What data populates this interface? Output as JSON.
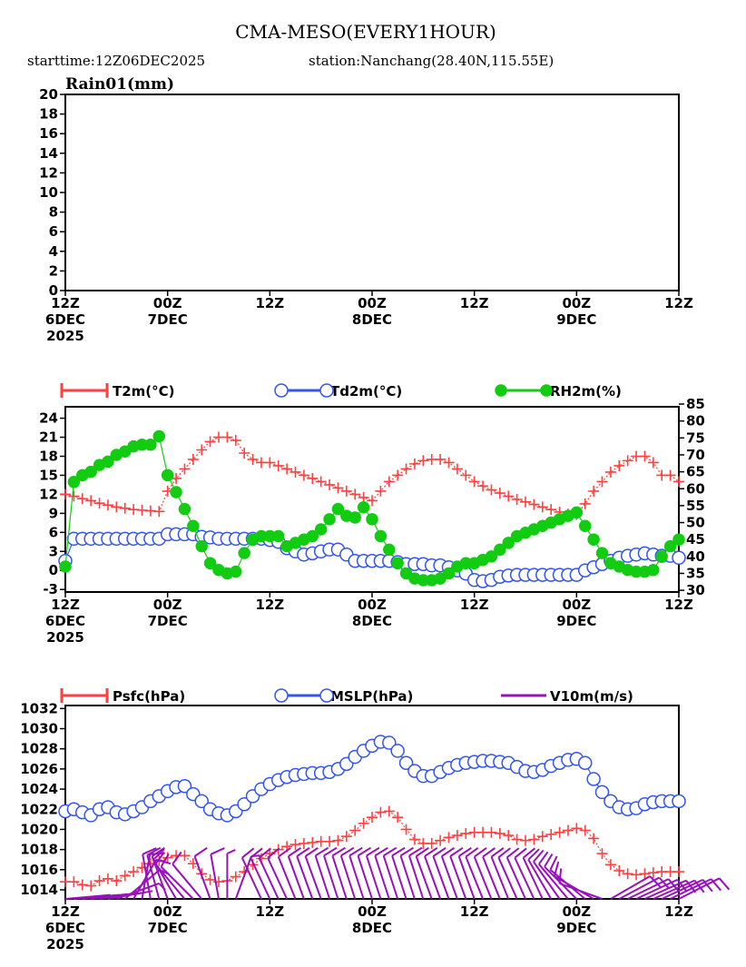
{
  "title": "CMA-MESO(EVERY1HOUR)",
  "subtitle_start": "starttime:12Z06DEC2025",
  "subtitle_station": "station:Nanchang(28.40N,115.55E)",
  "colors": {
    "t2m": "#ff4040",
    "td2m": "#3355ee",
    "rh2m": "#11cc11",
    "psfc": "#ff4040",
    "mslp": "#3355ee",
    "v10m": "#9911bb"
  },
  "time_ticks": [
    {
      "hour": 0,
      "l1": "12Z",
      "l2": "6DEC",
      "l3": "2025"
    },
    {
      "hour": 12,
      "l1": "00Z",
      "l2": "7DEC",
      "l3": ""
    },
    {
      "hour": 24,
      "l1": "12Z",
      "l2": "",
      "l3": ""
    },
    {
      "hour": 36,
      "l1": "00Z",
      "l2": "8DEC",
      "l3": ""
    },
    {
      "hour": 48,
      "l1": "12Z",
      "l2": "",
      "l3": ""
    },
    {
      "hour": 60,
      "l1": "00Z",
      "l2": "9DEC",
      "l3": ""
    },
    {
      "hour": 72,
      "l1": "12Z",
      "l2": "",
      "l3": ""
    }
  ],
  "chart_data": [
    {
      "type": "bar",
      "title": "Rain01(mm)",
      "ylim": [
        0,
        20
      ],
      "yticks": [
        "0",
        "2",
        "4",
        "6",
        "8",
        "10",
        "12",
        "14",
        "16",
        "18",
        "20"
      ],
      "xlim_hours": [
        0,
        72
      ],
      "values": []
    },
    {
      "type": "line",
      "ylim_left": [
        -3.4,
        25.8
      ],
      "ylim_right": [
        29.5,
        84.2
      ],
      "yticks_left": [
        "-3",
        "0",
        "3",
        "6",
        "9",
        "12",
        "15",
        "18",
        "21",
        "24"
      ],
      "yticks_right": [
        "30",
        "35",
        "40",
        "45",
        "50",
        "55",
        "60",
        "65",
        "70",
        "75",
        "80",
        "85"
      ],
      "legend": [
        "T2m(°C)",
        "Td2m(°C)",
        "RH2m(%)"
      ],
      "series": [
        {
          "name": "T2m",
          "axis": "left",
          "values": [
            12,
            11.7,
            11.3,
            11,
            10.6,
            10.3,
            10,
            9.8,
            9.6,
            9.5,
            9.4,
            9.3,
            12.5,
            14.5,
            16,
            17.5,
            19,
            20.3,
            21,
            21,
            20.5,
            18.5,
            17.5,
            17,
            17,
            16.5,
            16,
            15.5,
            15,
            14.5,
            14,
            13.5,
            13,
            12.5,
            12,
            11.5,
            11,
            12.5,
            14,
            15,
            16,
            16.8,
            17.3,
            17.5,
            17.5,
            17,
            16,
            15,
            14,
            13.3,
            12.7,
            12.2,
            11.7,
            11.2,
            10.8,
            10.4,
            10,
            9.6,
            9.2,
            8.9,
            8.8,
            10.5,
            12.5,
            14,
            15.5,
            16.5,
            17.3,
            18,
            18,
            17,
            15,
            15,
            14
          ]
        },
        {
          "name": "Td2m",
          "axis": "left",
          "values": [
            1.5,
            5,
            5,
            5,
            5,
            5,
            5,
            5,
            5,
            5,
            5,
            5,
            5.7,
            5.7,
            5.7,
            5.7,
            5.3,
            5.2,
            5,
            5,
            5,
            5,
            5,
            5,
            4.8,
            4.5,
            3.5,
            3,
            2.5,
            2.7,
            3,
            3.3,
            3.3,
            2.5,
            1.5,
            1.5,
            1.5,
            1.5,
            1.5,
            1.3,
            1,
            1,
            1,
            0.8,
            0.8,
            0.5,
            0,
            -0.5,
            -1.5,
            -1.7,
            -1.5,
            -1,
            -0.8,
            -0.7,
            -0.7,
            -0.7,
            -0.7,
            -0.7,
            -0.7,
            -0.7,
            -0.7,
            0,
            0.5,
            1,
            1.5,
            2,
            2.3,
            2.5,
            2.7,
            2.5,
            2.3,
            2.3,
            2
          ]
        },
        {
          "name": "RH2m",
          "axis": "right",
          "values": [
            37,
            62,
            64,
            65,
            67,
            68,
            70,
            71,
            72.5,
            73,
            73,
            75.5,
            64,
            59,
            54,
            49,
            43,
            38,
            36,
            35,
            35.5,
            41,
            45,
            46,
            46,
            46,
            43,
            44,
            45,
            46,
            48,
            51,
            54,
            52,
            51.5,
            54.5,
            51,
            46,
            42,
            38,
            35,
            33.5,
            33,
            33,
            33.5,
            35,
            37,
            38,
            38,
            39,
            40,
            42,
            44,
            46,
            47,
            48,
            49,
            50,
            51,
            52,
            53,
            49,
            45,
            41,
            38,
            37,
            36,
            35.5,
            35.5,
            36,
            40,
            43,
            45
          ]
        }
      ]
    },
    {
      "type": "line",
      "ylim": [
        1013.1,
        1032.3
      ],
      "yticks": [
        "1014",
        "1016",
        "1018",
        "1020",
        "1022",
        "1024",
        "1026",
        "1028",
        "1030",
        "1032"
      ],
      "legend": [
        "Psfc(hPa)",
        "MSLP(hPa)",
        "V10m(m/s)"
      ],
      "series": [
        {
          "name": "Psfc",
          "values": [
            1014.8,
            1014.8,
            1014.5,
            1014.4,
            1014.9,
            1015.1,
            1014.9,
            1015.4,
            1015.8,
            1016.2,
            1016.6,
            1016.9,
            1017.2,
            1017.4,
            1017.4,
            1016.6,
            1015.6,
            1015,
            1014.8,
            1014.9,
            1015.3,
            1015.8,
            1016.5,
            1017.1,
            1017.6,
            1018,
            1018.3,
            1018.5,
            1018.6,
            1018.7,
            1018.8,
            1018.8,
            1018.9,
            1019.3,
            1019.9,
            1020.6,
            1021.2,
            1021.7,
            1021.8,
            1021.2,
            1020,
            1019,
            1018.6,
            1018.6,
            1018.9,
            1019.2,
            1019.4,
            1019.6,
            1019.7,
            1019.7,
            1019.7,
            1019.6,
            1019.4,
            1019,
            1018.9,
            1019,
            1019.3,
            1019.5,
            1019.7,
            1019.9,
            1020.1,
            1019.9,
            1019.1,
            1017.6,
            1016.5,
            1015.9,
            1015.6,
            1015.5,
            1015.6,
            1015.7,
            1015.8,
            1015.8,
            1015.8
          ]
        },
        {
          "name": "MSLP",
          "values": [
            1021.8,
            1022,
            1021.7,
            1021.4,
            1022,
            1022.2,
            1021.7,
            1021.5,
            1021.8,
            1022.2,
            1022.8,
            1023.3,
            1023.8,
            1024.2,
            1024.3,
            1023.5,
            1022.8,
            1022,
            1021.6,
            1021.4,
            1021.8,
            1022.5,
            1023.3,
            1024,
            1024.5,
            1024.9,
            1025.2,
            1025.4,
            1025.5,
            1025.6,
            1025.6,
            1025.7,
            1026,
            1026.5,
            1027.2,
            1027.8,
            1028.3,
            1028.7,
            1028.6,
            1027.8,
            1026.6,
            1025.8,
            1025.3,
            1025.3,
            1025.7,
            1026.1,
            1026.4,
            1026.6,
            1026.7,
            1026.8,
            1026.8,
            1026.7,
            1026.6,
            1026.2,
            1025.8,
            1025.7,
            1025.9,
            1026.3,
            1026.6,
            1026.9,
            1027,
            1026.6,
            1025,
            1023.7,
            1022.8,
            1022.2,
            1022,
            1022.1,
            1022.5,
            1022.7,
            1022.8,
            1022.8,
            1022.8
          ]
        },
        {
          "name": "V10m",
          "direction_deg": [
            85,
            85,
            84,
            83,
            82,
            80,
            70,
            50,
            30,
            10,
            350,
            345,
            340,
            330,
            320,
            315,
            320,
            340,
            350,
            0,
            20,
            null,
            null,
            335,
            335,
            335,
            335,
            338,
            340,
            340,
            340,
            342,
            342,
            342,
            342,
            342,
            342,
            342,
            342,
            342,
            342,
            342,
            342,
            340,
            340,
            340,
            340,
            340,
            340,
            338,
            338,
            338,
            338,
            336,
            336,
            335,
            335,
            330,
            325,
            320,
            315,
            310,
            300,
            290,
            60,
            62,
            64,
            65,
            66,
            66,
            65,
            64,
            63
          ],
          "speed_ms": [
            1.5,
            1.5,
            1.5,
            1.5,
            1.5,
            1.5,
            3,
            3,
            4,
            4,
            4,
            4,
            4,
            4,
            4,
            4,
            4,
            4,
            4,
            3,
            3,
            0,
            0,
            4,
            4,
            5,
            5,
            5,
            5,
            5,
            5,
            5,
            5,
            5,
            5,
            5,
            5,
            5,
            5,
            5,
            5,
            5,
            5,
            5,
            5,
            5,
            5,
            5,
            5,
            5,
            5,
            5,
            5,
            5,
            5,
            5,
            5,
            5,
            5,
            5,
            5,
            4,
            4,
            4,
            4,
            4,
            4,
            4,
            4,
            4,
            4,
            4,
            4
          ]
        }
      ]
    }
  ]
}
